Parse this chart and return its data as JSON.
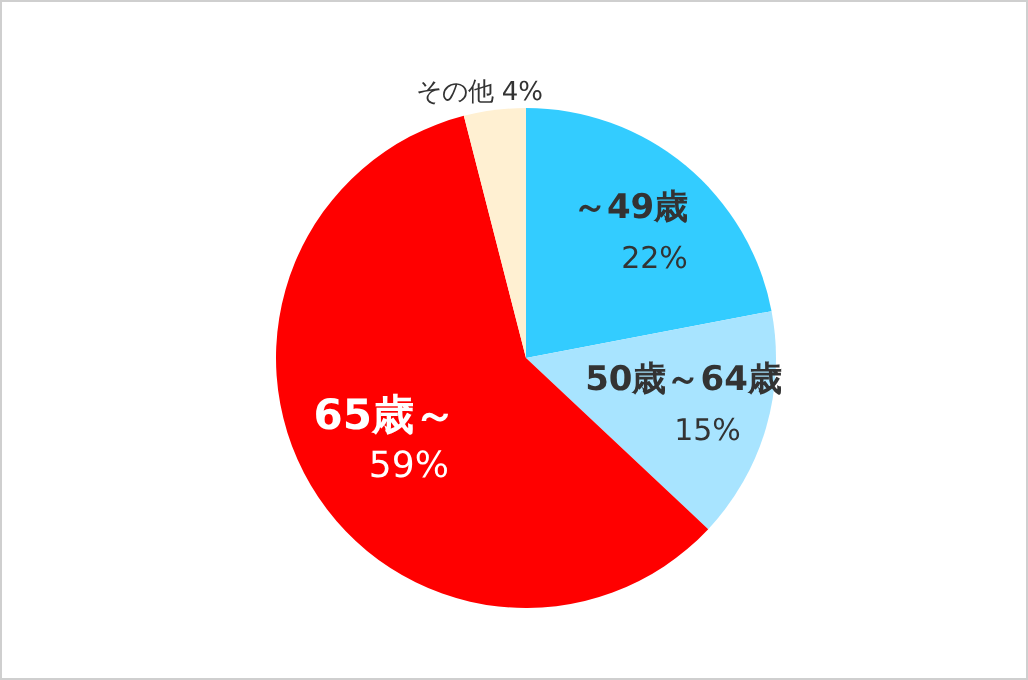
{
  "chart_data": {
    "type": "pie",
    "categories": [
      "～49歳",
      "50歳～64歳",
      "65歳～",
      "その他"
    ],
    "values": [
      22,
      15,
      59,
      4
    ],
    "colors": [
      "#33ccff",
      "#a8e4ff",
      "#ff0000",
      "#fff0d2"
    ],
    "value_labels": [
      "22%",
      "15%",
      "59%",
      "4%"
    ]
  }
}
